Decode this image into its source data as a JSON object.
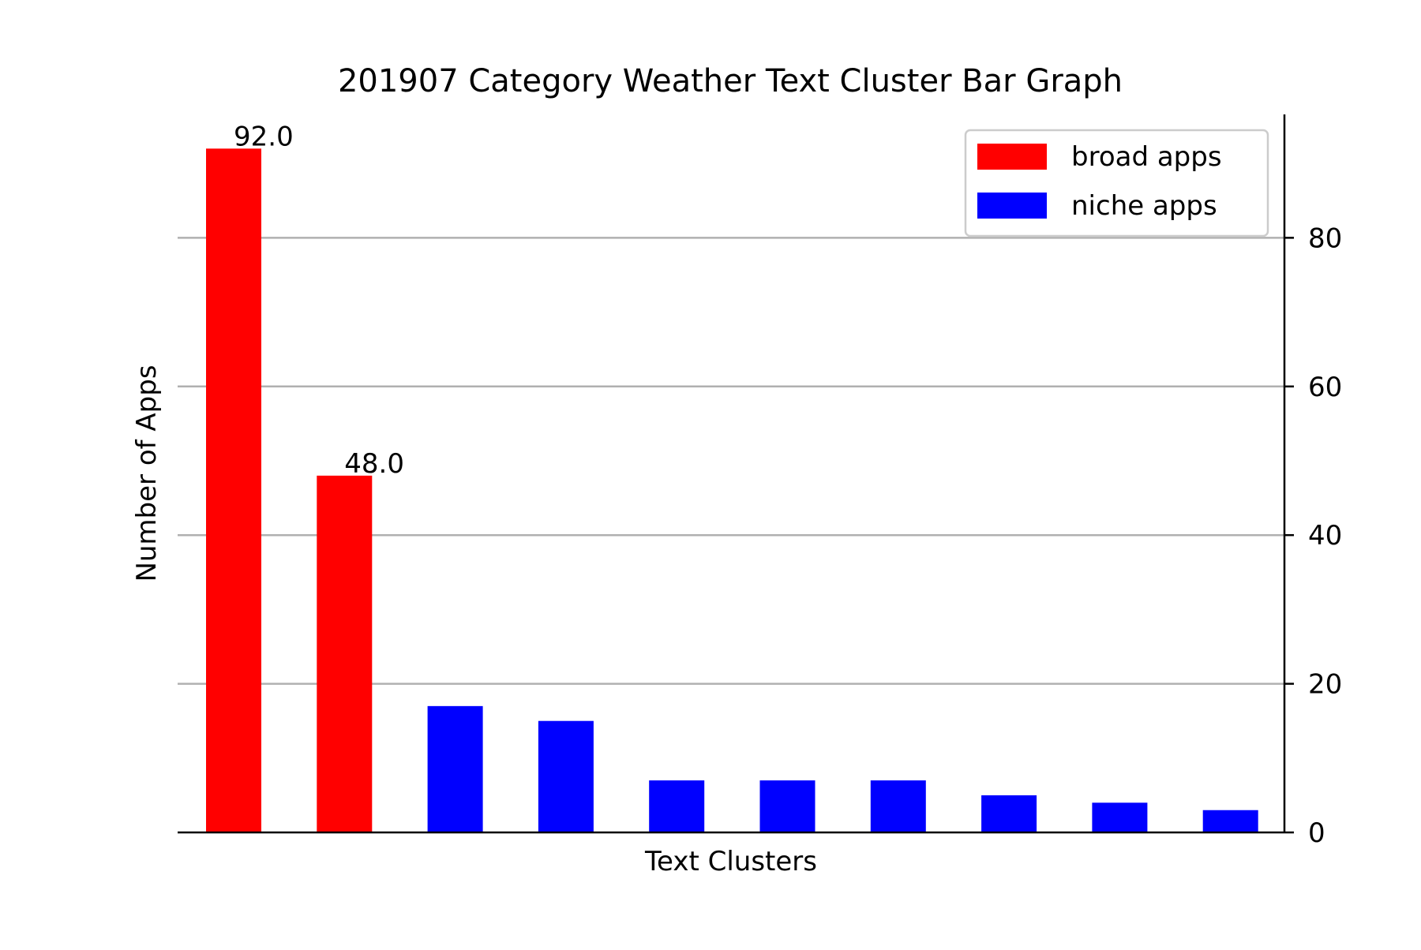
{
  "chart_data": {
    "type": "bar",
    "title": "201907 Category Weather Text Cluster Bar Graph",
    "xlabel": "Text Clusters",
    "ylabel": "Number of Apps",
    "ylim": [
      0,
      96.6
    ],
    "yticks": [
      0,
      20,
      40,
      60,
      80
    ],
    "y_axis_side": "right",
    "grid": "horizontal",
    "legend_position": "top-right",
    "series": [
      {
        "name": "broad apps",
        "color": "#ff0000",
        "indices": [
          0,
          1
        ]
      },
      {
        "name": "niche apps",
        "color": "#0000ff",
        "indices": [
          2,
          3,
          4,
          5,
          6,
          7,
          8,
          9
        ]
      }
    ],
    "values": [
      92,
      48,
      17,
      15,
      7,
      7,
      7,
      5,
      4,
      3
    ],
    "bar_series": [
      "broad apps",
      "broad apps",
      "niche apps",
      "niche apps",
      "niche apps",
      "niche apps",
      "niche apps",
      "niche apps",
      "niche apps",
      "niche apps"
    ],
    "data_labels": [
      {
        "index": 0,
        "text": "92.0"
      },
      {
        "index": 1,
        "text": "48.0"
      }
    ]
  }
}
